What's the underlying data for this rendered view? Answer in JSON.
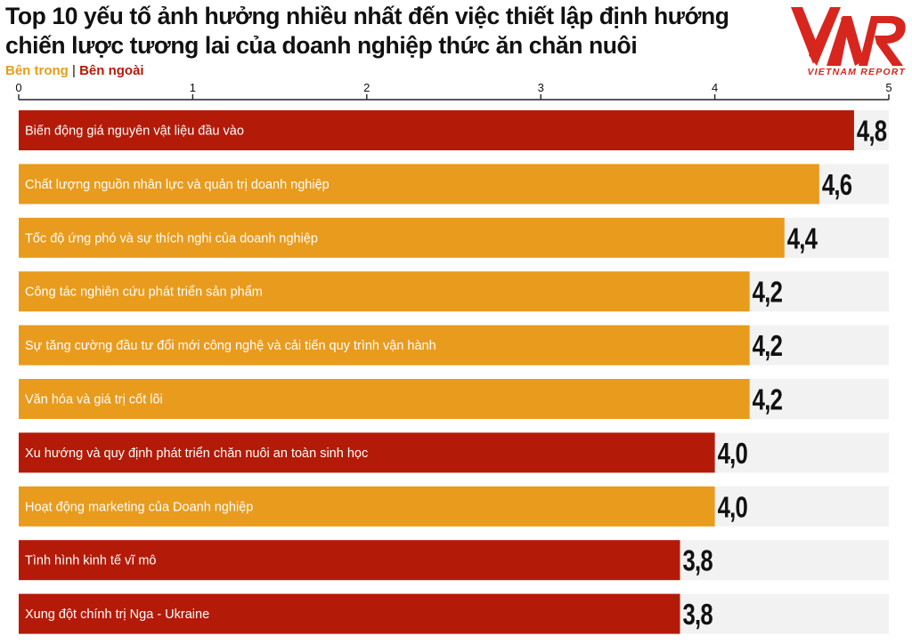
{
  "title_line1": "Top 10 yếu tố ảnh hưởng nhiều nhất đến việc thiết lập định hướng",
  "title_line2": "chiến lược tương lai của doanh nghiệp thức ăn chăn nuôi",
  "legend": {
    "inside": "Bên trong",
    "separator": "|",
    "outside": "Bên ngoài"
  },
  "logo": {
    "mark": "VNR",
    "text": "VIETNAM REPORT"
  },
  "colors": {
    "inside": "#E99B1D",
    "outside": "#B31B08",
    "track": "#F2F2F2",
    "text": "#111111"
  },
  "chart_data": {
    "type": "bar",
    "orientation": "horizontal",
    "xlim": [
      0,
      5
    ],
    "ticks": [
      "0",
      "1",
      "2",
      "3",
      "4",
      "5"
    ],
    "categories": [
      "Biến động giá nguyên vật liệu đầu vào",
      "Chất lượng nguồn nhân lực và quản trị doanh nghiệp",
      "Tốc độ ứng phó và sự thích nghi của doanh nghiệp",
      "Công tác nghiên cứu phát triển sản phẩm",
      "Sự tăng cường đầu tư đổi mới công nghệ và cải tiến quy trình vận hành",
      "Văn hóa và giá trị cốt lõi",
      "Xu hướng và quy định phát triển chăn nuôi an toàn sinh học",
      "Hoạt động marketing của Doanh nghiệp",
      "Tình hình kinh tế vĩ mô",
      "Xung đột chính trị Nga - Ukraine"
    ],
    "values": [
      4.8,
      4.6,
      4.4,
      4.2,
      4.2,
      4.2,
      4.0,
      4.0,
      3.8,
      3.8
    ],
    "value_labels": [
      "4,8",
      "4,6",
      "4,4",
      "4,2",
      "4,2",
      "4,2",
      "4,0",
      "4,0",
      "3,8",
      "3,8"
    ],
    "groups": [
      "Bên ngoài",
      "Bên trong",
      "Bên trong",
      "Bên trong",
      "Bên trong",
      "Bên trong",
      "Bên ngoài",
      "Bên trong",
      "Bên ngoài",
      "Bên ngoài"
    ]
  }
}
